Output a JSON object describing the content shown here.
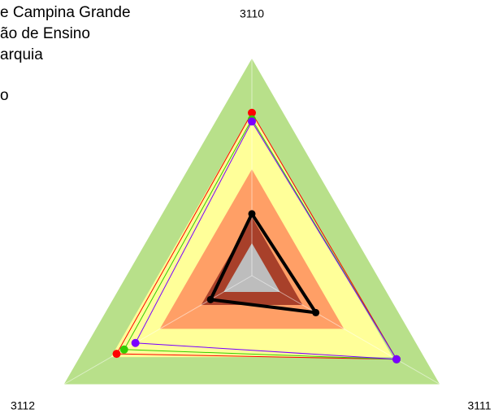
{
  "chart_data": {
    "type": "radar",
    "categories": [
      "3110",
      "3111",
      "3112"
    ],
    "legend_text": [
      "e Campina Grande",
      "ão de Ensino",
      "arquia",
      "o"
    ],
    "rlim": [
      0,
      1
    ],
    "bands": [
      {
        "color": "#b8e08a",
        "values": [
          1,
          1,
          1
        ]
      },
      {
        "color": "#ffff99",
        "values": [
          0.75,
          0.75,
          0.75
        ]
      },
      {
        "color": "#ff9f66",
        "values": [
          0.49,
          0.49,
          0.49
        ]
      },
      {
        "color": "#a8402a",
        "values": [
          0.27,
          0.27,
          0.27
        ]
      },
      {
        "color": "#bdbdbd",
        "values": [
          0.15,
          0.15,
          0.15
        ]
      }
    ],
    "series": [
      {
        "color": "#ff0000",
        "values": [
          0.75,
          0.77,
          0.72
        ]
      },
      {
        "color": "#33cc00",
        "values": [
          0.72,
          0.77,
          0.68
        ]
      },
      {
        "color": "#7a00ff",
        "values": [
          0.71,
          0.77,
          0.62
        ]
      },
      {
        "color": "#000000",
        "values": [
          0.285,
          0.34,
          0.22
        ]
      }
    ]
  }
}
